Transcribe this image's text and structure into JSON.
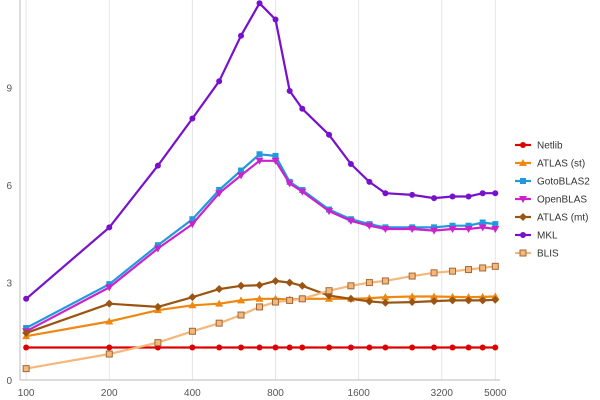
{
  "chart_data": {
    "type": "line",
    "title": "",
    "xlabel": "",
    "ylabel": "",
    "x_scale": "log2",
    "xlim": [
      95,
      5200
    ],
    "ylim": [
      0,
      11.7
    ],
    "x_ticks": [
      100,
      200,
      400,
      800,
      1600,
      3200,
      5000
    ],
    "x_tick_labels": [
      "100",
      "200",
      "400",
      "800",
      "1600",
      "3200",
      "5000"
    ],
    "y_ticks": [
      0,
      3,
      6,
      9
    ],
    "y_tick_labels": [
      "0",
      "3",
      "6",
      "9"
    ],
    "grid": "vertical",
    "legend_position": "right",
    "x": [
      100,
      200,
      300,
      400,
      500,
      600,
      700,
      800,
      900,
      1000,
      1250,
      1500,
      1750,
      2000,
      2500,
      3000,
      3500,
      4000,
      4500,
      5000
    ],
    "series": [
      {
        "name": "Netlib",
        "color": "#dd0000",
        "marker": "circle",
        "values": [
          1.0,
          1.0,
          1.0,
          1.0,
          1.0,
          1.0,
          1.0,
          1.0,
          1.0,
          1.0,
          1.0,
          1.0,
          1.0,
          1.0,
          1.0,
          1.0,
          1.0,
          1.0,
          1.0,
          1.0
        ]
      },
      {
        "name": "ATLAS (st)",
        "color": "#ee8811",
        "marker": "triangle-up",
        "values": [
          1.35,
          1.8,
          2.15,
          2.3,
          2.35,
          2.45,
          2.5,
          2.5,
          2.48,
          2.5,
          2.5,
          2.5,
          2.52,
          2.55,
          2.57,
          2.57,
          2.56,
          2.55,
          2.56,
          2.57
        ]
      },
      {
        "name": "GotoBLAS2",
        "color": "#2299dd",
        "marker": "square",
        "values": [
          1.6,
          2.95,
          4.15,
          4.95,
          5.85,
          6.45,
          6.95,
          6.9,
          6.1,
          5.85,
          5.25,
          4.95,
          4.8,
          4.7,
          4.7,
          4.7,
          4.75,
          4.75,
          4.85,
          4.8
        ]
      },
      {
        "name": "OpenBLAS",
        "color": "#cc22cc",
        "marker": "triangle-down",
        "values": [
          1.5,
          2.85,
          4.05,
          4.8,
          5.75,
          6.3,
          6.75,
          6.75,
          6.05,
          5.8,
          5.2,
          4.9,
          4.75,
          4.65,
          4.65,
          4.6,
          4.65,
          4.65,
          4.7,
          4.65
        ]
      },
      {
        "name": "ATLAS (mt)",
        "color": "#995511",
        "marker": "diamond",
        "values": [
          1.45,
          2.35,
          2.25,
          2.55,
          2.8,
          2.9,
          2.92,
          3.05,
          3.0,
          2.9,
          2.6,
          2.5,
          2.42,
          2.38,
          2.4,
          2.43,
          2.45,
          2.45,
          2.45,
          2.47
        ]
      },
      {
        "name": "MKL",
        "color": "#7711cc",
        "marker": "circle",
        "values": [
          2.5,
          4.7,
          6.6,
          8.05,
          9.2,
          10.6,
          11.6,
          11.1,
          8.9,
          8.35,
          7.55,
          6.65,
          6.1,
          5.75,
          5.7,
          5.6,
          5.65,
          5.65,
          5.75,
          5.75
        ]
      },
      {
        "name": "BLIS",
        "color": "#f5b77a",
        "marker": "square-open",
        "values": [
          0.35,
          0.8,
          1.15,
          1.5,
          1.75,
          2.0,
          2.25,
          2.4,
          2.45,
          2.5,
          2.75,
          2.9,
          3.0,
          3.05,
          3.2,
          3.3,
          3.35,
          3.4,
          3.45,
          3.5
        ]
      }
    ]
  }
}
